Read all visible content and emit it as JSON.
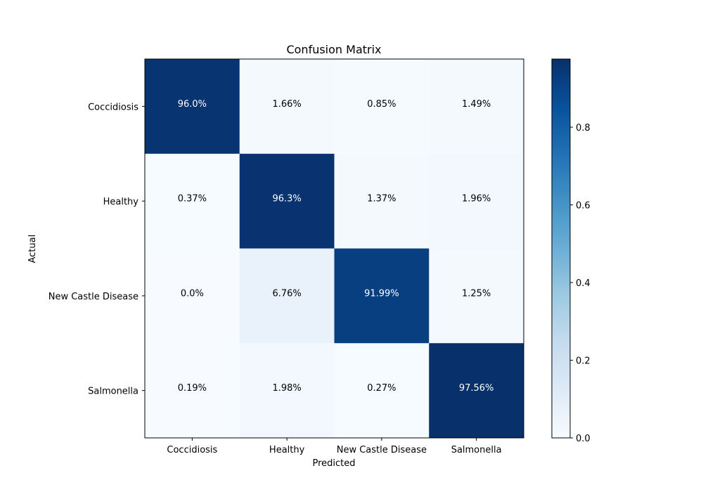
{
  "chart_data": {
    "type": "heatmap",
    "title": "Confusion Matrix",
    "xlabel": "Predicted",
    "ylabel": "Actual",
    "x_categories": [
      "Coccidiosis",
      "Healthy",
      "New Castle Disease",
      "Salmonella"
    ],
    "y_categories": [
      "Coccidiosis",
      "Healthy",
      "New Castle Disease",
      "Salmonella"
    ],
    "values": [
      [
        0.96,
        0.0166,
        0.0085,
        0.0149
      ],
      [
        0.0037,
        0.963,
        0.0137,
        0.0196
      ],
      [
        0.0,
        0.0676,
        0.9199,
        0.0125
      ],
      [
        0.0019,
        0.0198,
        0.0027,
        0.9756
      ]
    ],
    "annotations": [
      [
        "96.0%",
        "1.66%",
        "0.85%",
        "1.49%"
      ],
      [
        "0.37%",
        "96.3%",
        "1.37%",
        "1.96%"
      ],
      [
        "0.0%",
        "6.76%",
        "91.99%",
        "1.25%"
      ],
      [
        "0.19%",
        "1.98%",
        "0.27%",
        "97.56%"
      ]
    ],
    "colormap": "Blues",
    "colormap_stops": [
      "#f7fbff",
      "#deebf7",
      "#c6dbef",
      "#9ecae1",
      "#6baed6",
      "#4292c6",
      "#2171b5",
      "#08519c",
      "#08306b"
    ],
    "colorbar": {
      "range": [
        0,
        0.9756
      ],
      "ticks": [
        0.0,
        0.2,
        0.4,
        0.6,
        0.8
      ],
      "tick_labels": [
        "0.0",
        "0.2",
        "0.4",
        "0.6",
        "0.8"
      ]
    },
    "text_color_dark": "#000000",
    "text_color_light": "#ffffff"
  }
}
